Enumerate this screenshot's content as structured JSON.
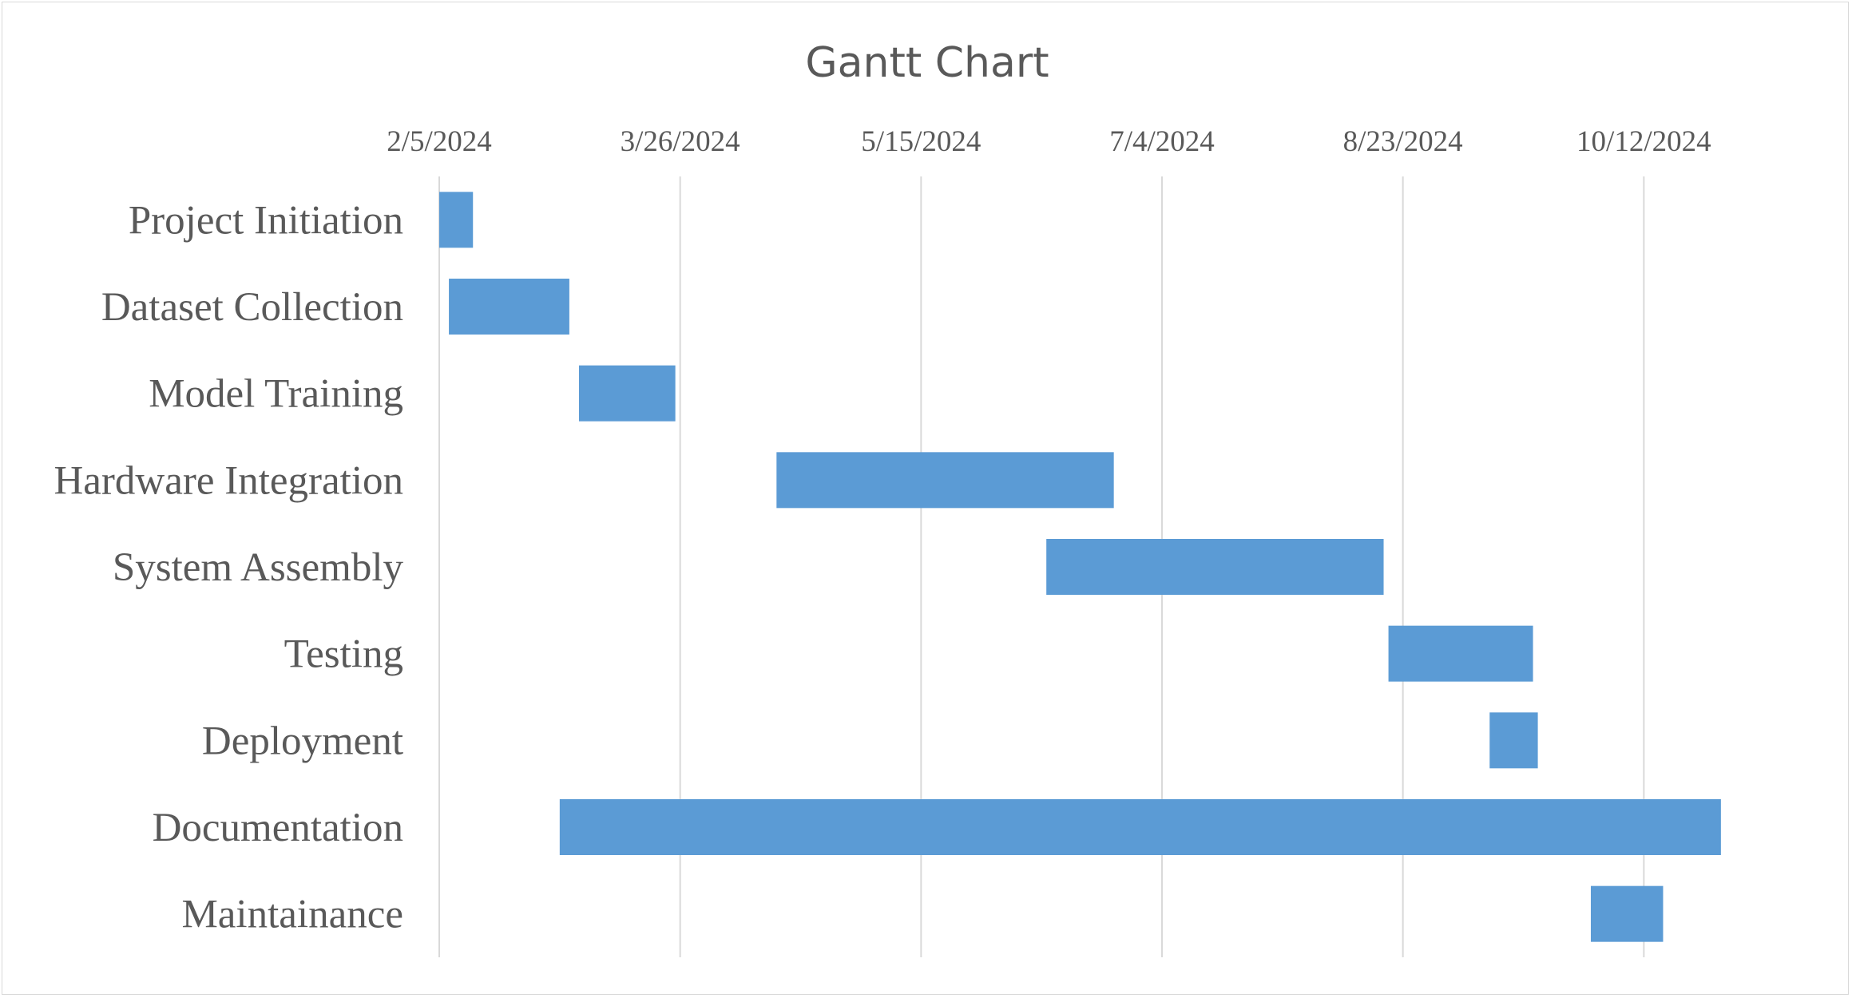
{
  "chart_data": {
    "type": "bar",
    "orientation": "horizontal",
    "stacked_gantt": true,
    "title": "Gantt Chart",
    "xlabel": "",
    "ylabel": "",
    "x_axis_position": "top",
    "grid": true,
    "legend": "none",
    "bar_color": "#5b9bd5",
    "xlim": [
      "2024-02-05",
      "2024-11-01"
    ],
    "x_ticks": [
      "2/5/2024",
      "3/26/2024",
      "5/15/2024",
      "7/4/2024",
      "8/23/2024",
      "10/12/2024"
    ],
    "x_tick_dates": [
      "2024-02-05",
      "2024-03-26",
      "2024-05-15",
      "2024-07-04",
      "2024-08-23",
      "2024-10-12"
    ],
    "tasks": [
      {
        "name": "Project Initiation",
        "start": "2024-02-05",
        "end": "2024-02-12"
      },
      {
        "name": "Dataset Collection",
        "start": "2024-02-07",
        "end": "2024-03-03"
      },
      {
        "name": "Model Training",
        "start": "2024-03-05",
        "end": "2024-03-25"
      },
      {
        "name": "Hardware Integration",
        "start": "2024-04-15",
        "end": "2024-06-24"
      },
      {
        "name": "System Assembly",
        "start": "2024-06-10",
        "end": "2024-08-19"
      },
      {
        "name": "Testing",
        "start": "2024-08-20",
        "end": "2024-09-19"
      },
      {
        "name": "Deployment",
        "start": "2024-09-10",
        "end": "2024-09-20"
      },
      {
        "name": "Documentation",
        "start": "2024-03-01",
        "end": "2024-10-28"
      },
      {
        "name": "Maintainance",
        "start": "2024-10-01",
        "end": "2024-10-16"
      }
    ]
  }
}
